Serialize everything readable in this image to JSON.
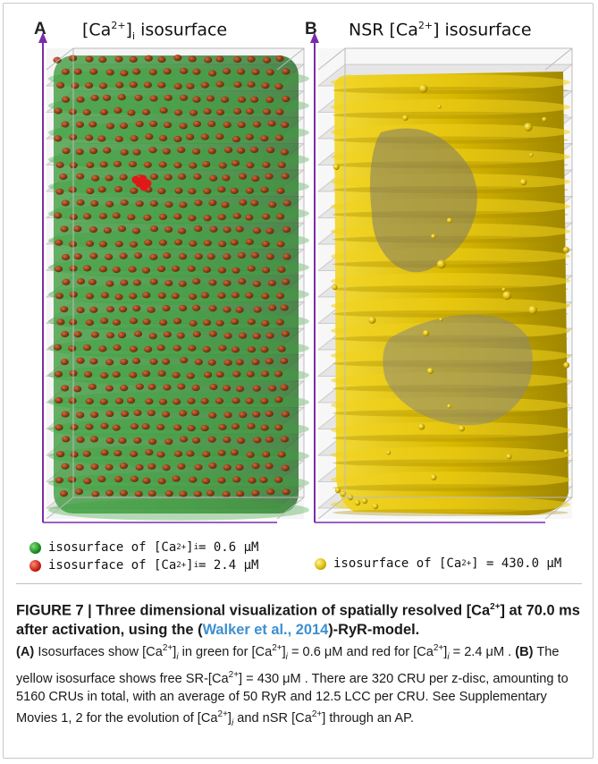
{
  "panel_a": {
    "letter": "A",
    "title_pre": "[Ca",
    "title_sup": "2+",
    "title_post": "]",
    "title_sub": "i",
    "title_tail": " isosurface"
  },
  "panel_b": {
    "letter": "B",
    "title_pre": "NSR [Ca",
    "title_sup": "2+",
    "title_post": "] isosurface"
  },
  "legend_a": [
    {
      "prefix": "isosurface of  [Ca",
      "sup": "2+",
      "mid": "]",
      "sub": "i",
      "suffix": " = 0.6 μM",
      "color": "#1b8a1b"
    },
    {
      "prefix": "isosurface of  [Ca",
      "sup": "2+",
      "mid": "]",
      "sub": "i",
      "suffix": " = 2.4 μM",
      "color": "#c61e10"
    }
  ],
  "legend_b": {
    "prefix": "isosurface of  [Ca",
    "sup": "2+",
    "suffix": "] = 430.0 μM",
    "color": "#d9b800"
  },
  "colors": {
    "cytosol_green": "#2f8f2f",
    "ryr_red": "#b83010",
    "nsr_yellow": "#e2c200",
    "axis_purple": "#7a2ca8"
  },
  "caption": {
    "title_1": "FIGURE 7 | Three dimensional visualization of spatially resolved [Ca",
    "title_sup": "2+",
    "title_2": "] at 70.0 ms after activation, using the (",
    "title_cite": "Walker et al., 2014",
    "title_3": ")-RyR-model.",
    "b1": "(A)",
    "t1": " Isosurfaces show [Ca",
    "t2": "]",
    "t3": " in green for [Ca",
    "t4": "]",
    "t5": " = 0.6 μM and red for [Ca",
    "t6": "]",
    "t7": " = 2.4 μM . ",
    "b2": "(B)",
    "t8": " The yellow isosurface shows free SR-[Ca",
    "t9": "] = 430 μM . There are 320 CRU per z-disc, amounting to 5160 CRUs in total, with an average of 50 RyR and 12.5 LCC per CRU. See Supplementary Movies 1, 2 for the evolution of [Ca",
    "t10": "]",
    "t11": " and nSR [Ca",
    "t12": "] through an AP.",
    "sup": "2+",
    "sub_i": "i"
  }
}
